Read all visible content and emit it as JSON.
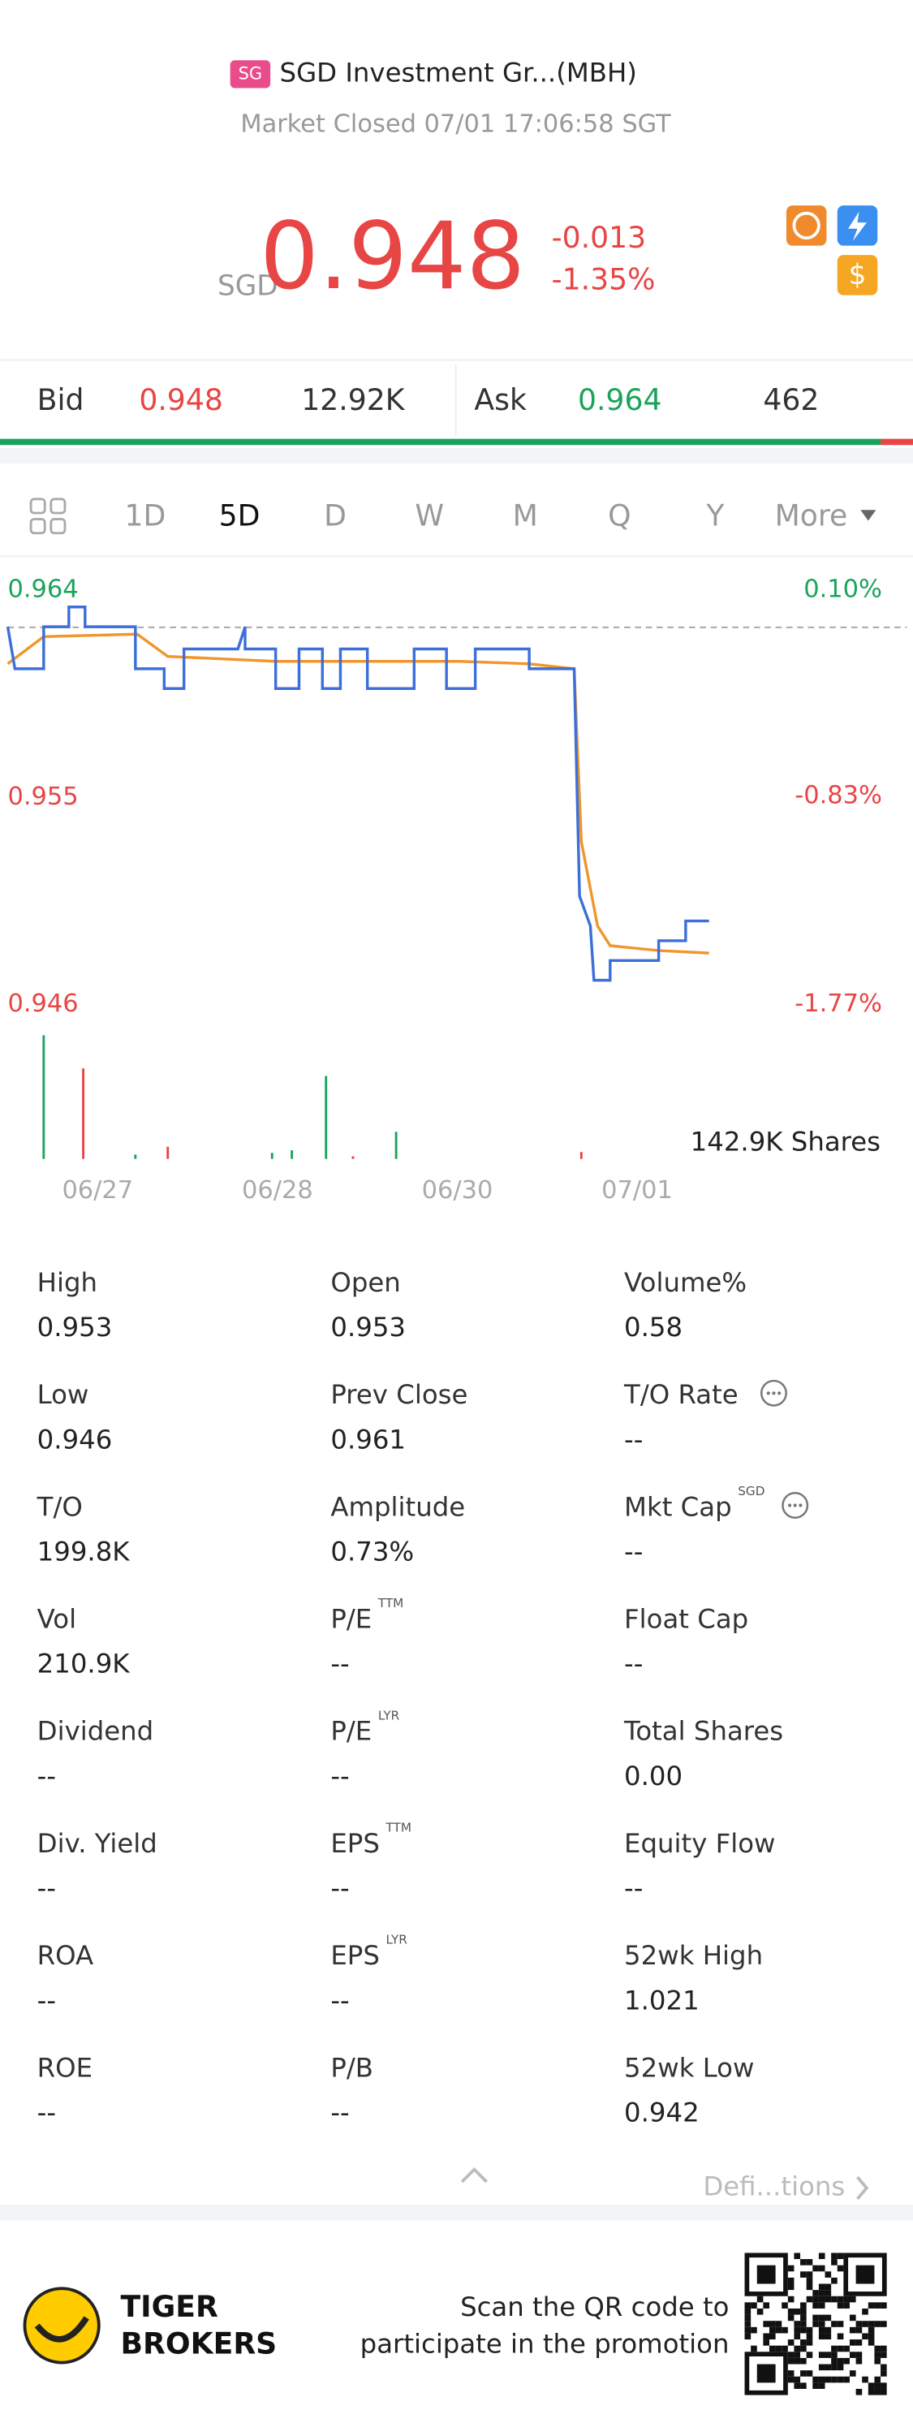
{
  "header": {
    "badge": "SG",
    "title": "SGD Investment Gr...(MBH)",
    "status": "Market Closed 07/01 17:06:58 SGT",
    "currency": "SGD",
    "price": "0.948",
    "change": "-0.013",
    "change_pct": "-1.35%"
  },
  "quote": {
    "bid_label": "Bid",
    "bid": "0.948",
    "bid_size": "12.92K",
    "ask_label": "Ask",
    "ask": "0.964",
    "ask_size": "462"
  },
  "tabs": [
    "1D",
    "5D",
    "D",
    "W",
    "M",
    "Q",
    "Y",
    "More"
  ],
  "chart_data": {
    "type": "line",
    "xlim": [
      0,
      5
    ],
    "xticks": [
      {
        "value": 0.5,
        "label": "06/27"
      },
      {
        "value": 1.5,
        "label": "06/28"
      },
      {
        "value": 2.5,
        "label": "06/30"
      },
      {
        "value": 3.5,
        "label": "07/01"
      }
    ],
    "ylim": [
      0.946,
      0.964
    ],
    "yticks": [
      0.946,
      0.955,
      0.964
    ],
    "ytick_colors": [
      "#e84545",
      "#e84545",
      "#1aa35a"
    ],
    "y2lim": [
      -1.77,
      0.1
    ],
    "y2ticks": [
      {
        "value": -1.77,
        "label": "-1.77%"
      },
      {
        "value": -0.83,
        "label": "-0.83%"
      },
      {
        "value": 0.1,
        "label": "0.10%"
      }
    ],
    "series": [
      {
        "color": "#3d6fd8",
        "x": [
          0,
          0.04,
          0.2,
          0.2,
          0.34,
          0.34,
          0.43,
          0.43,
          0.71,
          0.71,
          0.87,
          0.87,
          0.98,
          0.98,
          1.28,
          1.32,
          1.32,
          1.49,
          1.49,
          1.62,
          1.62,
          1.75,
          1.75,
          1.85,
          1.85,
          2.0,
          2.0,
          2.26,
          2.26,
          2.44,
          2.44,
          2.6,
          2.6,
          2.9,
          2.9,
          3.15,
          3.18,
          3.24,
          3.26,
          3.35,
          3.35,
          3.62,
          3.62,
          3.77,
          3.77,
          3.9
        ],
        "values": [
          0.9619,
          0.9602,
          0.9602,
          0.9619,
          0.9619,
          0.9627,
          0.9627,
          0.9619,
          0.9619,
          0.9602,
          0.9602,
          0.9594,
          0.9594,
          0.961,
          0.961,
          0.9619,
          0.961,
          0.961,
          0.9594,
          0.9594,
          0.961,
          0.961,
          0.9594,
          0.9594,
          0.961,
          0.961,
          0.9594,
          0.9594,
          0.961,
          0.961,
          0.9594,
          0.9594,
          0.961,
          0.961,
          0.9602,
          0.9602,
          0.951,
          0.9498,
          0.9476,
          0.9476,
          0.9484,
          0.9484,
          0.9492,
          0.9492,
          0.95,
          0.95
        ]
      },
      {
        "color": "#f0962a",
        "x": [
          0,
          0.2,
          0.72,
          0.89,
          1.49,
          2.51,
          2.9,
          3.15,
          3.19,
          3.28,
          3.35,
          3.62,
          3.9
        ],
        "values": [
          0.9604,
          0.9615,
          0.9616,
          0.9607,
          0.9605,
          0.9605,
          0.9604,
          0.9602,
          0.9532,
          0.9498,
          0.949,
          0.9488,
          0.9487
        ]
      }
    ],
    "volume": {
      "label": "142.9K Shares",
      "ylim": [
        0,
        142.9
      ],
      "x": [
        0.2,
        0.42,
        0.71,
        0.89,
        1.47,
        1.58,
        1.77,
        1.92,
        2.16,
        3.19
      ],
      "values": [
        142.9,
        104.6,
        5,
        14,
        7,
        10,
        95.8,
        3,
        31.4,
        8
      ],
      "colors": [
        "#1aa35a",
        "#e84545",
        "#1aa35a",
        "#e84545",
        "#1aa35a",
        "#1aa35a",
        "#1aa35a",
        "#e84545",
        "#1aa35a",
        "#e84545"
      ]
    }
  },
  "stats": [
    {
      "label": "High",
      "value": "0.953"
    },
    {
      "label": "Open",
      "value": "0.953"
    },
    {
      "label": "Volume%",
      "value": "0.58"
    },
    {
      "label": "Low",
      "value": "0.946"
    },
    {
      "label": "Prev Close",
      "value": "0.961"
    },
    {
      "label": "T/O Rate",
      "value": "--",
      "info": true
    },
    {
      "label": "T/O",
      "value": "199.8K"
    },
    {
      "label": "Amplitude",
      "value": "0.73%"
    },
    {
      "label": "Mkt Cap",
      "sup": "SGD",
      "value": "--",
      "info": true
    },
    {
      "label": "Vol",
      "value": "210.9K"
    },
    {
      "label": "P/E",
      "sup": "TTM",
      "value": "--"
    },
    {
      "label": "Float Cap",
      "value": "--"
    },
    {
      "label": "Dividend",
      "value": "--"
    },
    {
      "label": "P/E",
      "sup": "LYR",
      "value": "--"
    },
    {
      "label": "Total Shares",
      "value": "0.00"
    },
    {
      "label": "Div. Yield",
      "value": "--"
    },
    {
      "label": "EPS",
      "sup": "TTM",
      "value": "--"
    },
    {
      "label": "Equity Flow",
      "value": "--"
    },
    {
      "label": "ROA",
      "value": "--"
    },
    {
      "label": "EPS",
      "sup": "LYR",
      "value": "--"
    },
    {
      "label": "52wk High",
      "value": "1.021"
    },
    {
      "label": "ROE",
      "value": "--"
    },
    {
      "label": "P/B",
      "value": "--"
    },
    {
      "label": "52wk Low",
      "value": "0.942"
    }
  ],
  "footer": {
    "definitions": "Defi...tions",
    "brand_1": "TIGER",
    "brand_2": "BROKERS",
    "promo_1": "Scan the QR code to",
    "promo_2": "participate in the promotion"
  }
}
